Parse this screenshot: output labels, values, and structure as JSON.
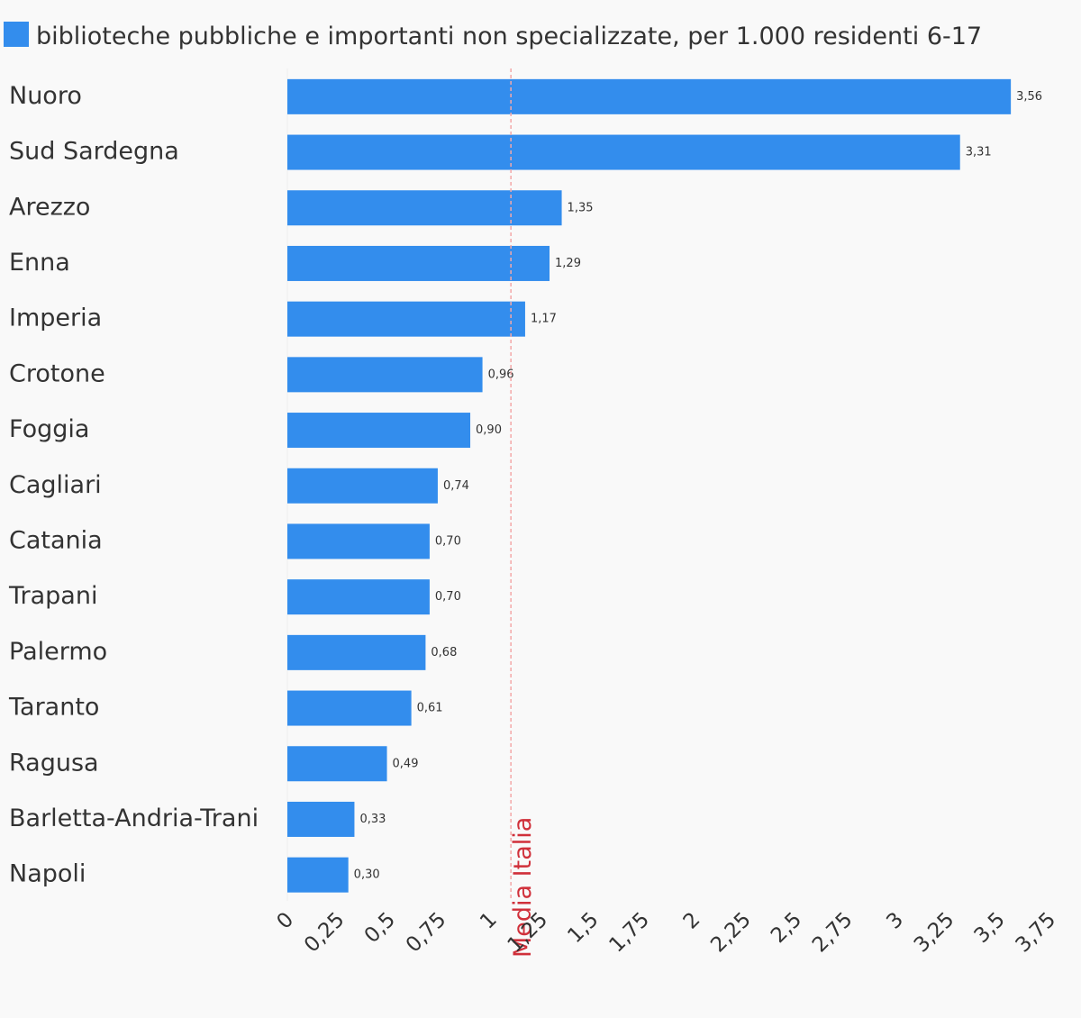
{
  "colors": {
    "bar": "#338ded",
    "text": "#333333",
    "mean_line": "#f4a8a8",
    "mean_label": "#d0303a",
    "background": "#f9f9f9"
  },
  "legend": {
    "label": "biblioteche pubbliche e importanti non specializzate, per 1.000 residenti 6-17",
    "position": "top-left"
  },
  "chart_data": {
    "type": "bar",
    "orientation": "horizontal",
    "categories": [
      "Nuoro",
      "Sud Sardegna",
      "Arezzo",
      "Enna",
      "Imperia",
      "Crotone",
      "Foggia",
      "Cagliari",
      "Catania",
      "Trapani",
      "Palermo",
      "Taranto",
      "Ragusa",
      "Barletta-Andria-Trani",
      "Napoli"
    ],
    "series": [
      {
        "name": "biblioteche pubbliche e importanti non specializzate, per 1.000 residenti 6-17",
        "values": [
          3.56,
          3.31,
          1.35,
          1.29,
          1.17,
          0.96,
          0.9,
          0.74,
          0.7,
          0.7,
          0.68,
          0.61,
          0.49,
          0.33,
          0.3
        ],
        "labels": [
          "3,56",
          "3,31",
          "1,35",
          "1,29",
          "1,17",
          "0,96",
          "0,90",
          "0,74",
          "0,70",
          "0,70",
          "0,68",
          "0,61",
          "0,49",
          "0,33",
          "0,30"
        ]
      }
    ],
    "xlim": [
      0,
      3.75
    ],
    "x_ticks": [
      0,
      0.25,
      0.5,
      0.75,
      1,
      1.25,
      1.5,
      1.75,
      2,
      2.25,
      2.5,
      2.75,
      3,
      3.25,
      3.5,
      3.75
    ],
    "x_tick_labels": [
      "0",
      "0,25",
      "0,5",
      "0,75",
      "1",
      "1,25",
      "1,5",
      "1,75",
      "2",
      "2,25",
      "2,5",
      "2,75",
      "3",
      "3,25",
      "3,5",
      "3,75"
    ],
    "reference_line": {
      "value": 1.1,
      "label": "Media Italia"
    },
    "grid": false
  }
}
